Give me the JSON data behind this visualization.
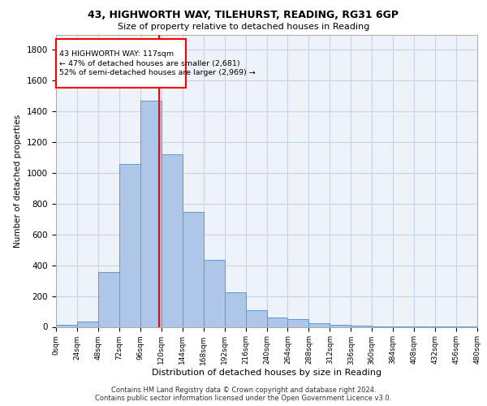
{
  "title1": "43, HIGHWORTH WAY, TILEHURST, READING, RG31 6GP",
  "title2": "Size of property relative to detached houses in Reading",
  "xlabel": "Distribution of detached houses by size in Reading",
  "ylabel": "Number of detached properties",
  "footer1": "Contains HM Land Registry data © Crown copyright and database right 2024.",
  "footer2": "Contains public sector information licensed under the Open Government Licence v3.0.",
  "annotation_line1": "43 HIGHWORTH WAY: 117sqm",
  "annotation_line2": "← 47% of detached houses are smaller (2,681)",
  "annotation_line3": "52% of semi-detached houses are larger (2,969) →",
  "property_size": 117,
  "bin_edges": [
    0,
    24,
    48,
    72,
    96,
    120,
    144,
    168,
    192,
    216,
    240,
    264,
    288,
    312,
    336,
    360,
    384,
    408,
    432,
    456,
    480
  ],
  "bin_labels": [
    "0sqm",
    "24sqm",
    "48sqm",
    "72sqm",
    "96sqm",
    "120sqm",
    "144sqm",
    "168sqm",
    "192sqm",
    "216sqm",
    "240sqm",
    "264sqm",
    "288sqm",
    "312sqm",
    "336sqm",
    "360sqm",
    "384sqm",
    "408sqm",
    "432sqm",
    "456sqm",
    "480sqm"
  ],
  "bar_heights": [
    15,
    35,
    355,
    1060,
    1470,
    1120,
    745,
    435,
    225,
    110,
    60,
    50,
    25,
    15,
    8,
    5,
    3,
    2,
    1,
    1
  ],
  "bar_color": "#aec6e8",
  "bar_edge_color": "#5b9bd5",
  "grid_color": "#c8d4e8",
  "background_color": "#eef2f9",
  "red_line_x": 117,
  "ylim": [
    0,
    1900
  ],
  "xlim": [
    0,
    480
  ],
  "yticks": [
    0,
    200,
    400,
    600,
    800,
    1000,
    1200,
    1400,
    1600,
    1800
  ]
}
